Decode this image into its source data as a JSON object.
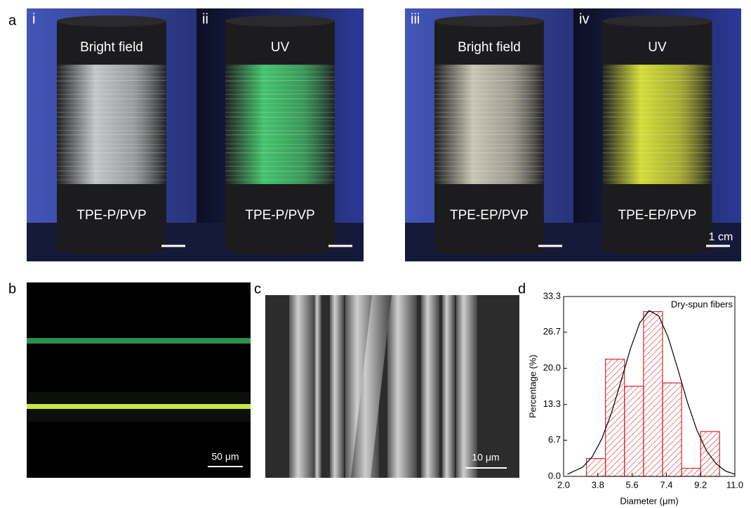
{
  "panels": {
    "a": {
      "label": "a",
      "scale_bar": "1 cm",
      "photos": [
        {
          "label": "i",
          "top": "Bright field",
          "bottom": "TPE-P/PVP"
        },
        {
          "label": "ii",
          "top": "UV",
          "bottom": "TPE-P/PVP"
        },
        {
          "label": "iii",
          "top": "Bright field",
          "bottom": "TPE-EP/PVP"
        },
        {
          "label": "iv",
          "top": "UV",
          "bottom": "TPE-EP/PVP"
        }
      ]
    },
    "b": {
      "label": "b",
      "scale_bar": "50 μm"
    },
    "c": {
      "label": "c",
      "scale_bar": "10 μm"
    },
    "d": {
      "label": "d"
    }
  },
  "chart_data": {
    "type": "histogram",
    "annotation": "Dry-spun fibers",
    "x_label": "Diameter (μm)",
    "y_label": "Percentage (%)",
    "color": "#d42a2a",
    "bins": [
      3.2,
      4.2,
      5.2,
      6.2,
      7.2,
      8.2,
      9.2,
      10.2
    ],
    "values": [
      3.3,
      21.7,
      16.7,
      30.5,
      17.3,
      1.5,
      8.3
    ],
    "fit": {
      "x": [
        2.2,
        3,
        3.5,
        4,
        4.5,
        5,
        5.5,
        6,
        6.5,
        7,
        7.5,
        8,
        8.5,
        9,
        9.5,
        10,
        10.5,
        11
      ],
      "y": [
        0.4,
        1.7,
        3.6,
        6.9,
        11.6,
        17.4,
        23.5,
        28.4,
        30.7,
        29.7,
        25.7,
        19.9,
        13.8,
        8.6,
        4.8,
        2.4,
        1.0,
        0.4
      ]
    },
    "xlim": [
      2,
      11
    ],
    "ylim": [
      0,
      33.3
    ],
    "xticks": [
      {
        "value": 2,
        "label": "2.0"
      },
      3.8,
      5.6,
      7.4,
      9.2,
      {
        "value": 11,
        "label": "11.0"
      }
    ],
    "yticks": [
      {
        "value": 0,
        "label": "0.0"
      },
      6.7,
      13.3,
      {
        "value": 20,
        "label": "20.0"
      },
      26.7,
      33.3
    ]
  }
}
